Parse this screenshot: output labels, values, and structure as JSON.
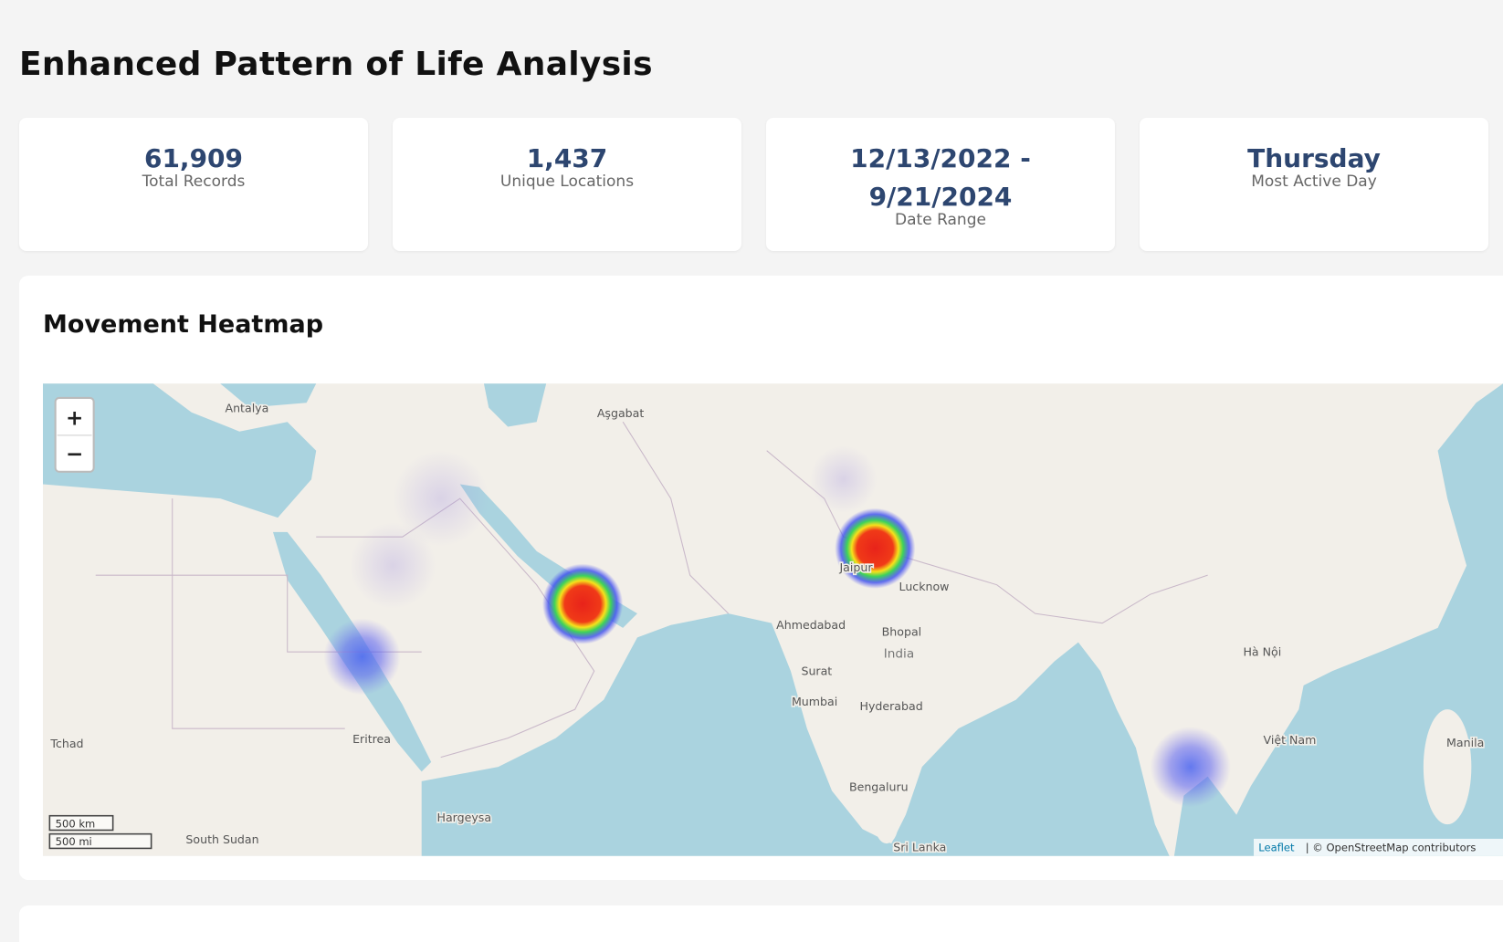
{
  "header": {
    "title": "Enhanced Pattern of Life Analysis"
  },
  "stats": [
    {
      "value": "61,909",
      "label": "Total Records"
    },
    {
      "value": "1,437",
      "label": "Unique Locations"
    },
    {
      "value": "12/13/2022 - 9/21/2024",
      "label": "Date Range"
    },
    {
      "value": "Thursday",
      "label": "Most Active Day"
    }
  ],
  "heatmap": {
    "title": "Movement Heatmap",
    "zoom_in": "+",
    "zoom_out": "−",
    "scale_km": "500 km",
    "scale_mi": "500 mi",
    "attribution_link": "Leaflet",
    "attribution_text": "| © OpenStreetMap contributors",
    "places": [
      "Antalya",
      "Aşgabat",
      "Lucknow",
      "Ahmedabad",
      "Bhopal",
      "India",
      "Surat",
      "Mumbai",
      "Hyderabad",
      "Bengaluru",
      "Sri Lanka",
      "Eritrea",
      "Hargeysa",
      "South Sudan",
      "Tchad",
      "Hà Nội",
      "Việt Nam",
      "Manila",
      "Jaipur"
    ]
  }
}
